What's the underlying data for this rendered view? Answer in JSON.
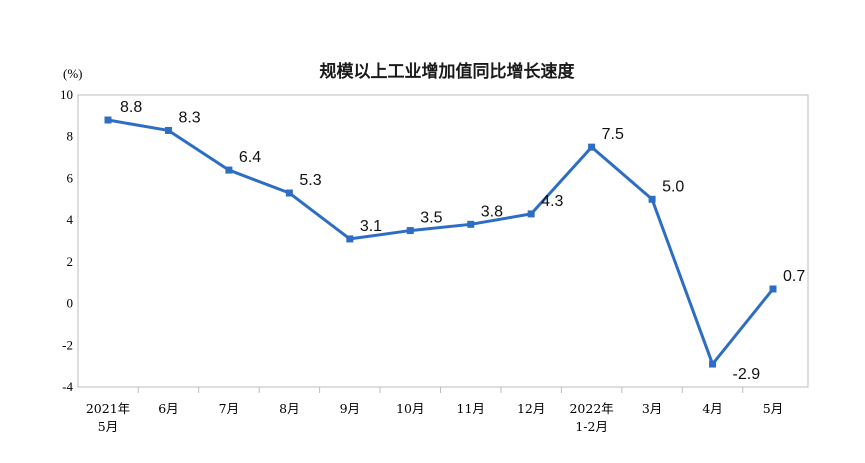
{
  "chart_data": {
    "type": "line",
    "title": "规模以上工业增加值同比增长速度",
    "unit_label": "(%)",
    "categories": [
      [
        "2021年",
        "5月"
      ],
      [
        "6月"
      ],
      [
        "7月"
      ],
      [
        "8月"
      ],
      [
        "9月"
      ],
      [
        "10月"
      ],
      [
        "11月"
      ],
      [
        "12月"
      ],
      [
        "2022年",
        "1-2月"
      ],
      [
        "3月"
      ],
      [
        "4月"
      ],
      [
        "5月"
      ]
    ],
    "series": [
      {
        "values": [
          8.8,
          8.3,
          6.4,
          5.3,
          3.1,
          3.5,
          3.8,
          4.3,
          7.5,
          5.0,
          -2.9,
          0.7
        ],
        "data_labels": [
          "8.8",
          "8.3",
          "6.4",
          "5.3",
          "3.1",
          "3.5",
          "3.8",
          "4.3",
          "7.5",
          "5.0",
          "-2.9",
          "0.7"
        ],
        "color": "#2e6dc4"
      }
    ],
    "ylim": [
      -4,
      10
    ],
    "yticks": [
      "-4",
      "-2",
      "0",
      "2",
      "4",
      "6",
      "8",
      "10"
    ],
    "grid": false,
    "legend": "none"
  }
}
